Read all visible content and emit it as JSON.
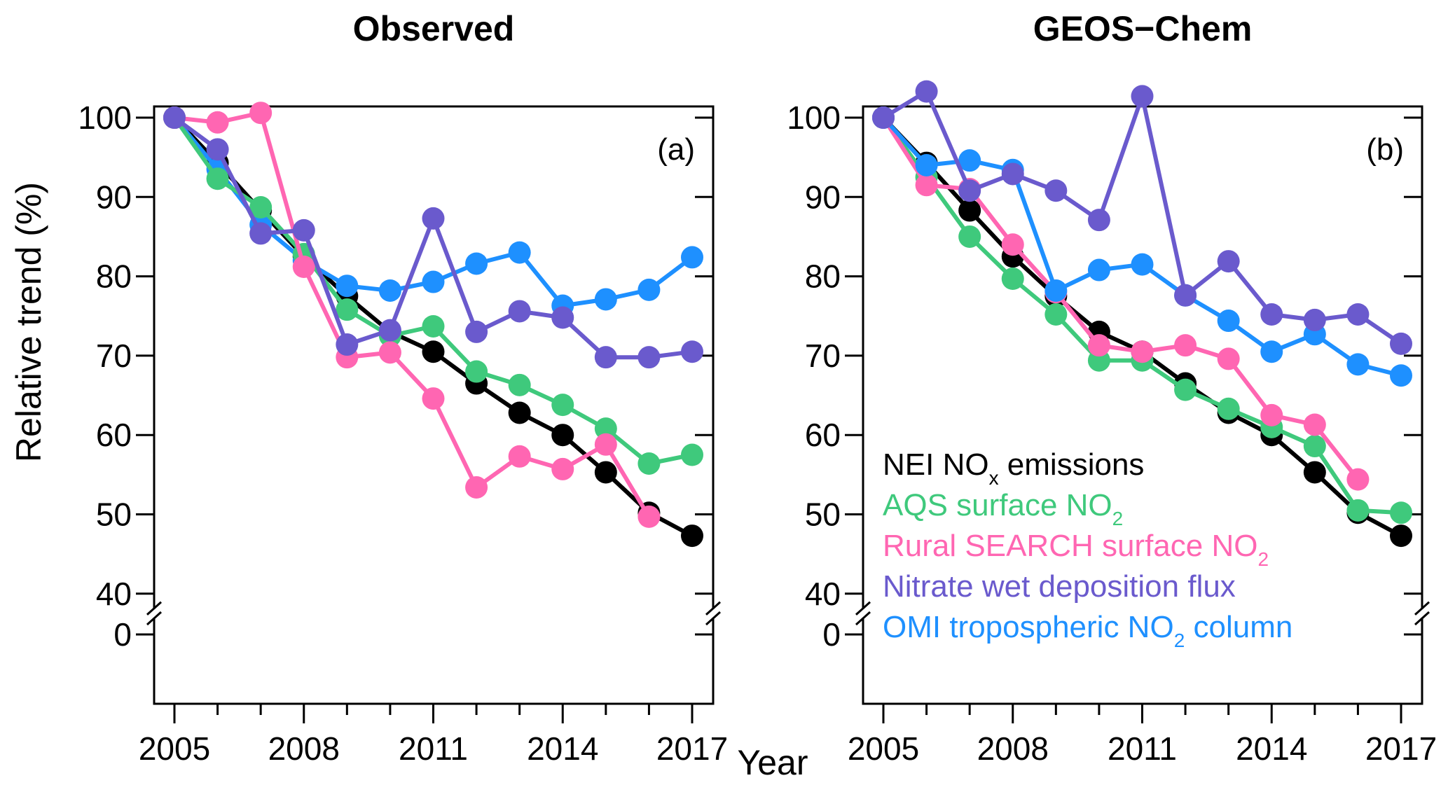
{
  "chart_data": {
    "type": "line",
    "x": [
      2005,
      2006,
      2007,
      2008,
      2009,
      2010,
      2011,
      2012,
      2013,
      2014,
      2015,
      2016,
      2017
    ],
    "xlabel": "Year",
    "ylabel": "Relative trend (%)",
    "xticks": [
      2005,
      2008,
      2011,
      2014,
      2017
    ],
    "yticks": [
      0,
      40,
      50,
      60,
      70,
      80,
      90,
      100
    ],
    "ylim": [
      40,
      107
    ],
    "axis_break": "between 0 and 40",
    "grid": false,
    "legend": {
      "placement": "panel (b) bottom-left",
      "entries": [
        {
          "key": "nei",
          "label": "NEI NO",
          "sub": "x",
          "suffix": " emissions",
          "color": "#000000"
        },
        {
          "key": "aqs",
          "label": "AQS surface NO",
          "sub": "2",
          "suffix": "",
          "color": "#3fc97c"
        },
        {
          "key": "search",
          "label": "Rural SEARCH surface NO",
          "sub": "2",
          "suffix": "",
          "color": "#ff66b2"
        },
        {
          "key": "nitrate",
          "label": "Nitrate wet deposition flux",
          "sub": "",
          "suffix": "",
          "color": "#6a5acd"
        },
        {
          "key": "omi",
          "label": "OMI tropospheric NO",
          "sub": "2",
          "suffix": " column",
          "color": "#1e90ff"
        }
      ]
    },
    "panels": [
      {
        "title": "Observed",
        "tag": "(a)",
        "series": [
          {
            "key": "nei",
            "name": "NEI NOx emissions",
            "color": "#000000",
            "values": [
              100,
              94.3,
              88.3,
              82.5,
              77.5,
              73.0,
              70.5,
              66.5,
              62.8,
              60.0,
              55.3,
              50.2,
              47.3
            ]
          },
          {
            "key": "omi",
            "name": "OMI tropospheric NO2 column",
            "color": "#1e90ff",
            "values": [
              100,
              93.5,
              86.5,
              82.0,
              78.8,
              78.2,
              79.3,
              81.6,
              83.0,
              76.3,
              77.1,
              78.3,
              82.4
            ]
          },
          {
            "key": "aqs",
            "name": "AQS surface NO2",
            "color": "#3fc97c",
            "values": [
              100,
              92.3,
              88.7,
              82.8,
              75.8,
              72.5,
              73.7,
              68.0,
              66.3,
              63.8,
              60.8,
              56.4,
              57.5
            ]
          },
          {
            "key": "search",
            "name": "Rural SEARCH surface NO2",
            "color": "#ff66b2",
            "values": [
              100,
              99.4,
              100.6,
              81.2,
              69.8,
              70.4,
              64.6,
              53.4,
              57.3,
              55.7,
              58.8,
              49.7,
              null
            ]
          },
          {
            "key": "nitrate",
            "name": "Nitrate wet deposition flux",
            "color": "#6a5acd",
            "values": [
              100,
              96.0,
              85.4,
              85.8,
              71.4,
              73.2,
              87.3,
              73.0,
              75.6,
              74.8,
              69.8,
              69.8,
              70.5
            ]
          }
        ]
      },
      {
        "title": "GEOS−Chem",
        "tag": "(b)",
        "series": [
          {
            "key": "nei",
            "name": "NEI NOx emissions",
            "color": "#000000",
            "values": [
              100,
              94.3,
              88.3,
              82.5,
              77.5,
              73.0,
              70.5,
              66.5,
              62.8,
              60.0,
              55.3,
              50.2,
              47.3
            ]
          },
          {
            "key": "aqs",
            "name": "AQS surface NO2",
            "color": "#3fc97c",
            "values": [
              100,
              92.5,
              85.0,
              79.7,
              75.2,
              69.4,
              69.4,
              65.7,
              63.3,
              61.0,
              58.6,
              50.5,
              50.2
            ]
          },
          {
            "key": "search",
            "name": "Rural SEARCH surface NO2",
            "color": "#ff66b2",
            "values": [
              100,
              91.5,
              91.0,
              84.0,
              78.0,
              71.3,
              70.5,
              71.3,
              69.6,
              62.5,
              61.3,
              54.4,
              null
            ]
          },
          {
            "key": "omi",
            "name": "OMI tropospheric NO2 column",
            "color": "#1e90ff",
            "values": [
              100,
              94.0,
              94.6,
              93.4,
              78.2,
              80.8,
              81.5,
              77.6,
              74.4,
              70.5,
              72.7,
              68.9,
              67.5
            ]
          },
          {
            "key": "nitrate",
            "name": "Nitrate wet deposition flux",
            "color": "#6a5acd",
            "values": [
              100,
              103.3,
              90.8,
              92.9,
              90.8,
              87.1,
              102.7,
              77.6,
              81.9,
              75.2,
              74.5,
              75.2,
              71.5
            ]
          }
        ]
      }
    ]
  }
}
